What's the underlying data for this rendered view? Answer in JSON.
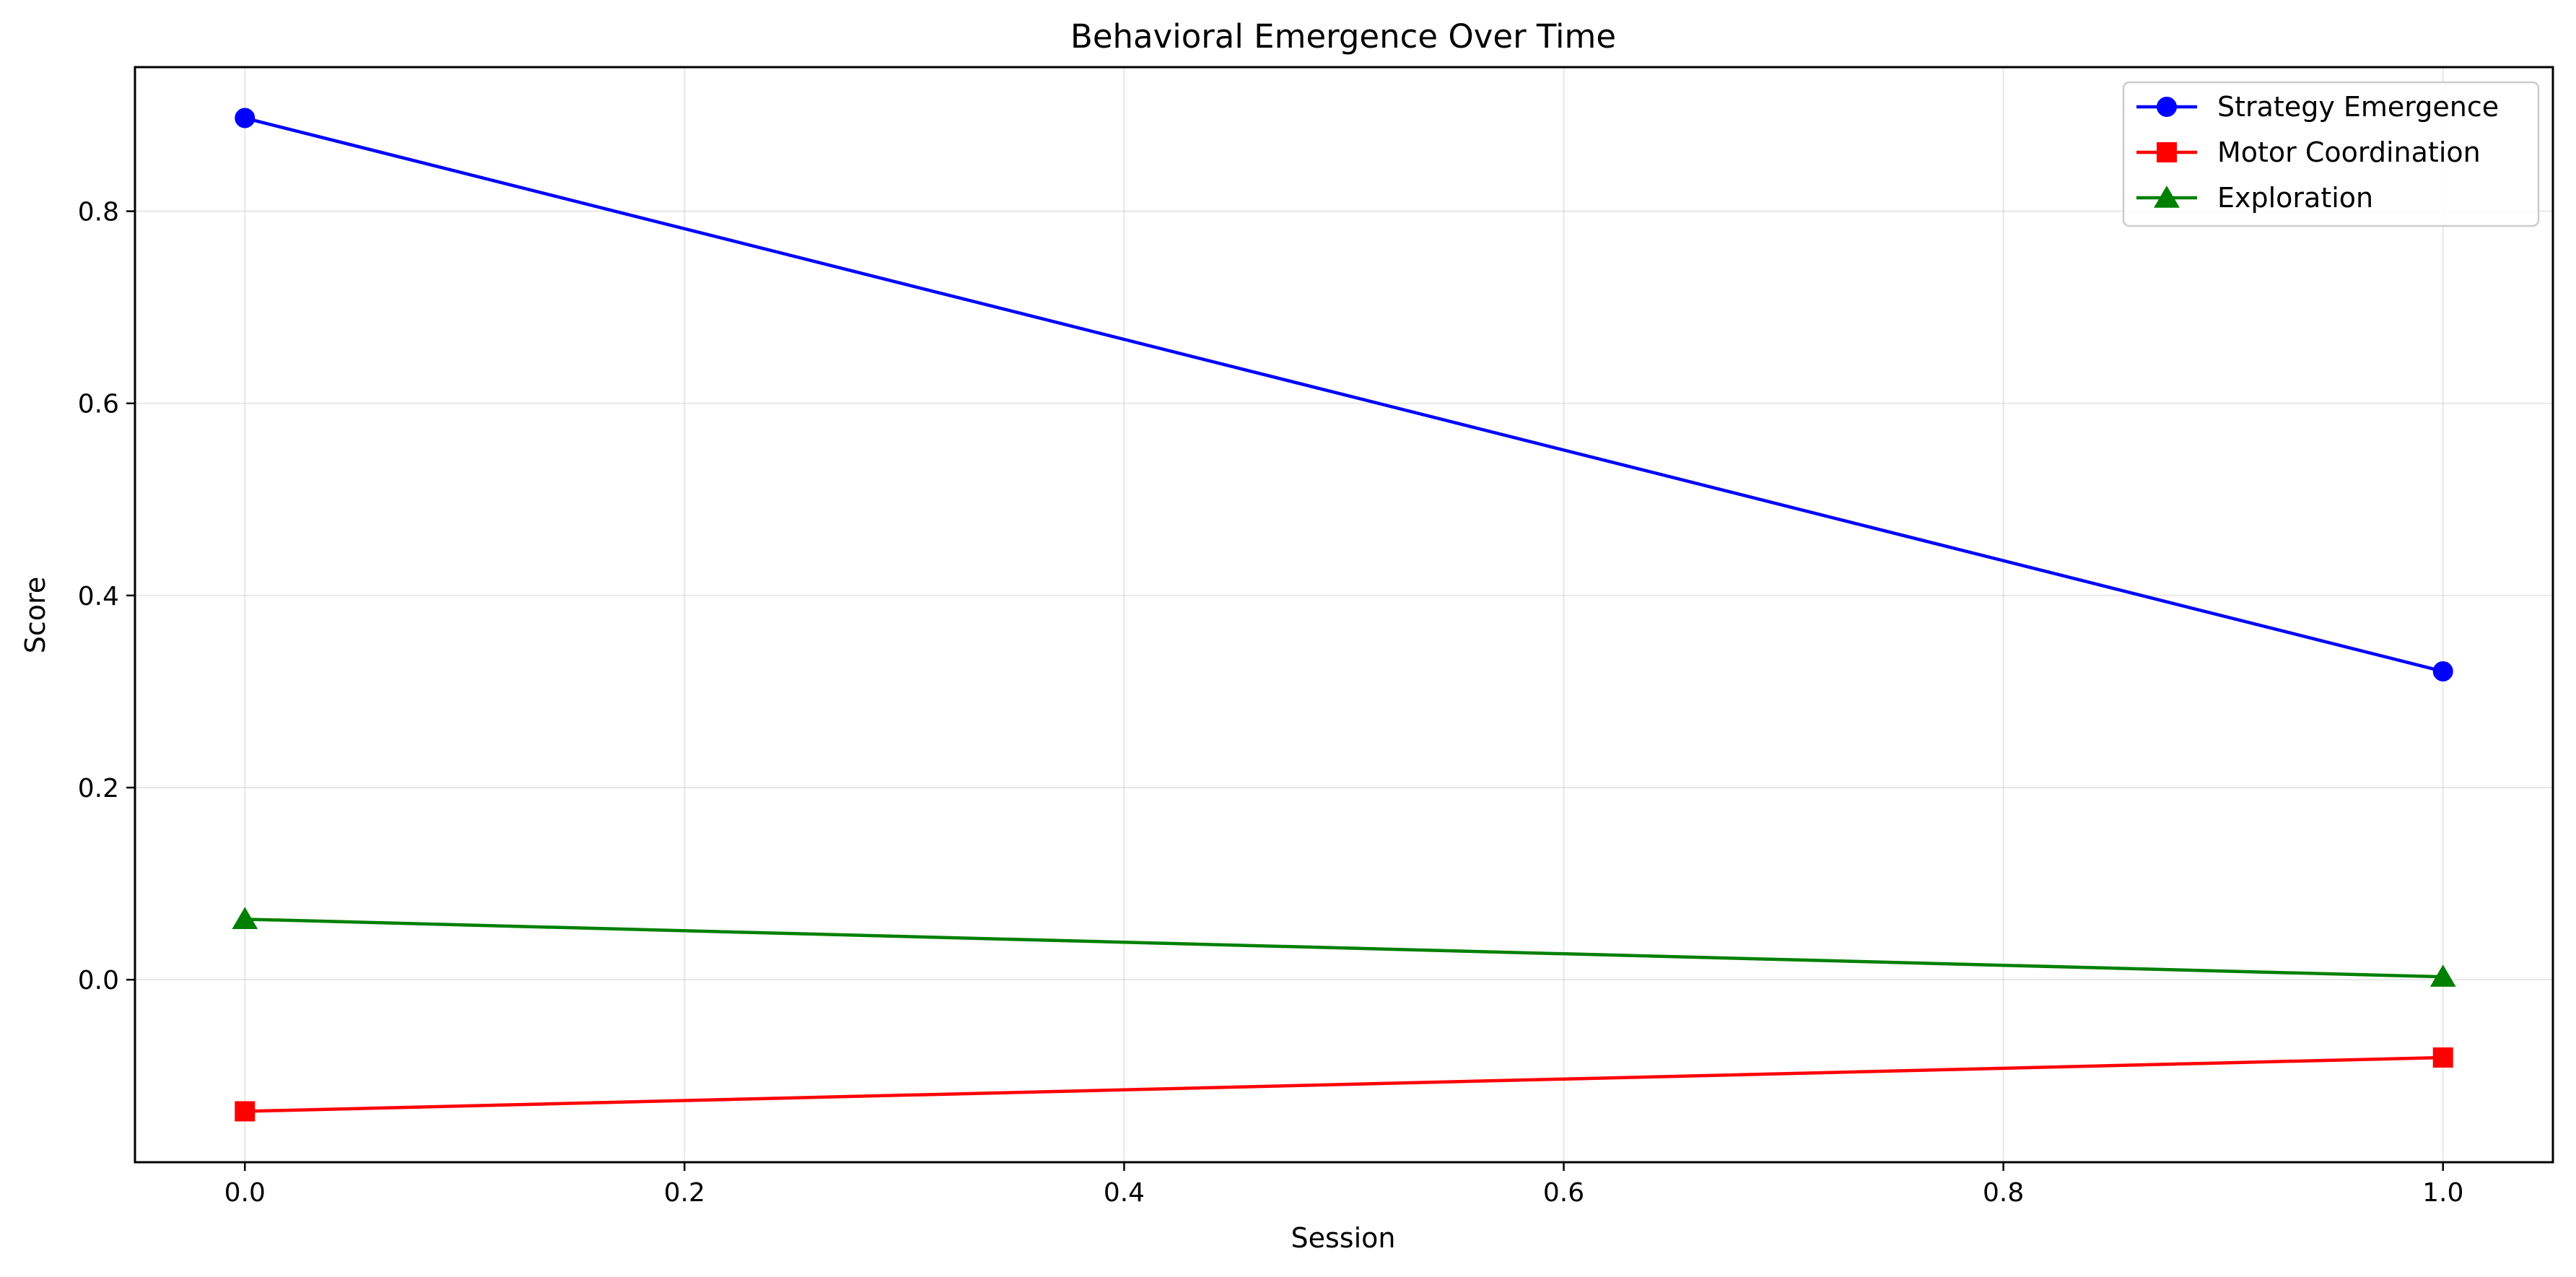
{
  "chart_data": {
    "type": "line",
    "title": "Behavioral Emergence Over Time",
    "xlabel": "Session",
    "ylabel": "Score",
    "xlim": [
      -0.05,
      1.05
    ],
    "ylim": [
      -0.19,
      0.95
    ],
    "x_ticks": [
      0.0,
      0.2,
      0.4,
      0.6,
      0.8,
      1.0
    ],
    "x_tick_labels": [
      "0.0",
      "0.2",
      "0.4",
      "0.6",
      "0.8",
      "1.0"
    ],
    "y_ticks": [
      0.0,
      0.2,
      0.4,
      0.6,
      0.8
    ],
    "y_tick_labels": [
      "0.0",
      "0.2",
      "0.4",
      "0.6",
      "0.8"
    ],
    "grid": true,
    "legend_position": "top-right",
    "x": [
      0,
      1
    ],
    "series": [
      {
        "name": "Strategy Emergence",
        "values": [
          0.897,
          0.321
        ],
        "color": "#0000ff",
        "marker": "circle"
      },
      {
        "name": "Motor Coordination",
        "values": [
          -0.137,
          -0.081
        ],
        "color": "#ff0000",
        "marker": "square"
      },
      {
        "name": "Exploration",
        "values": [
          0.063,
          0.003
        ],
        "color": "#008000",
        "marker": "triangle"
      }
    ]
  }
}
